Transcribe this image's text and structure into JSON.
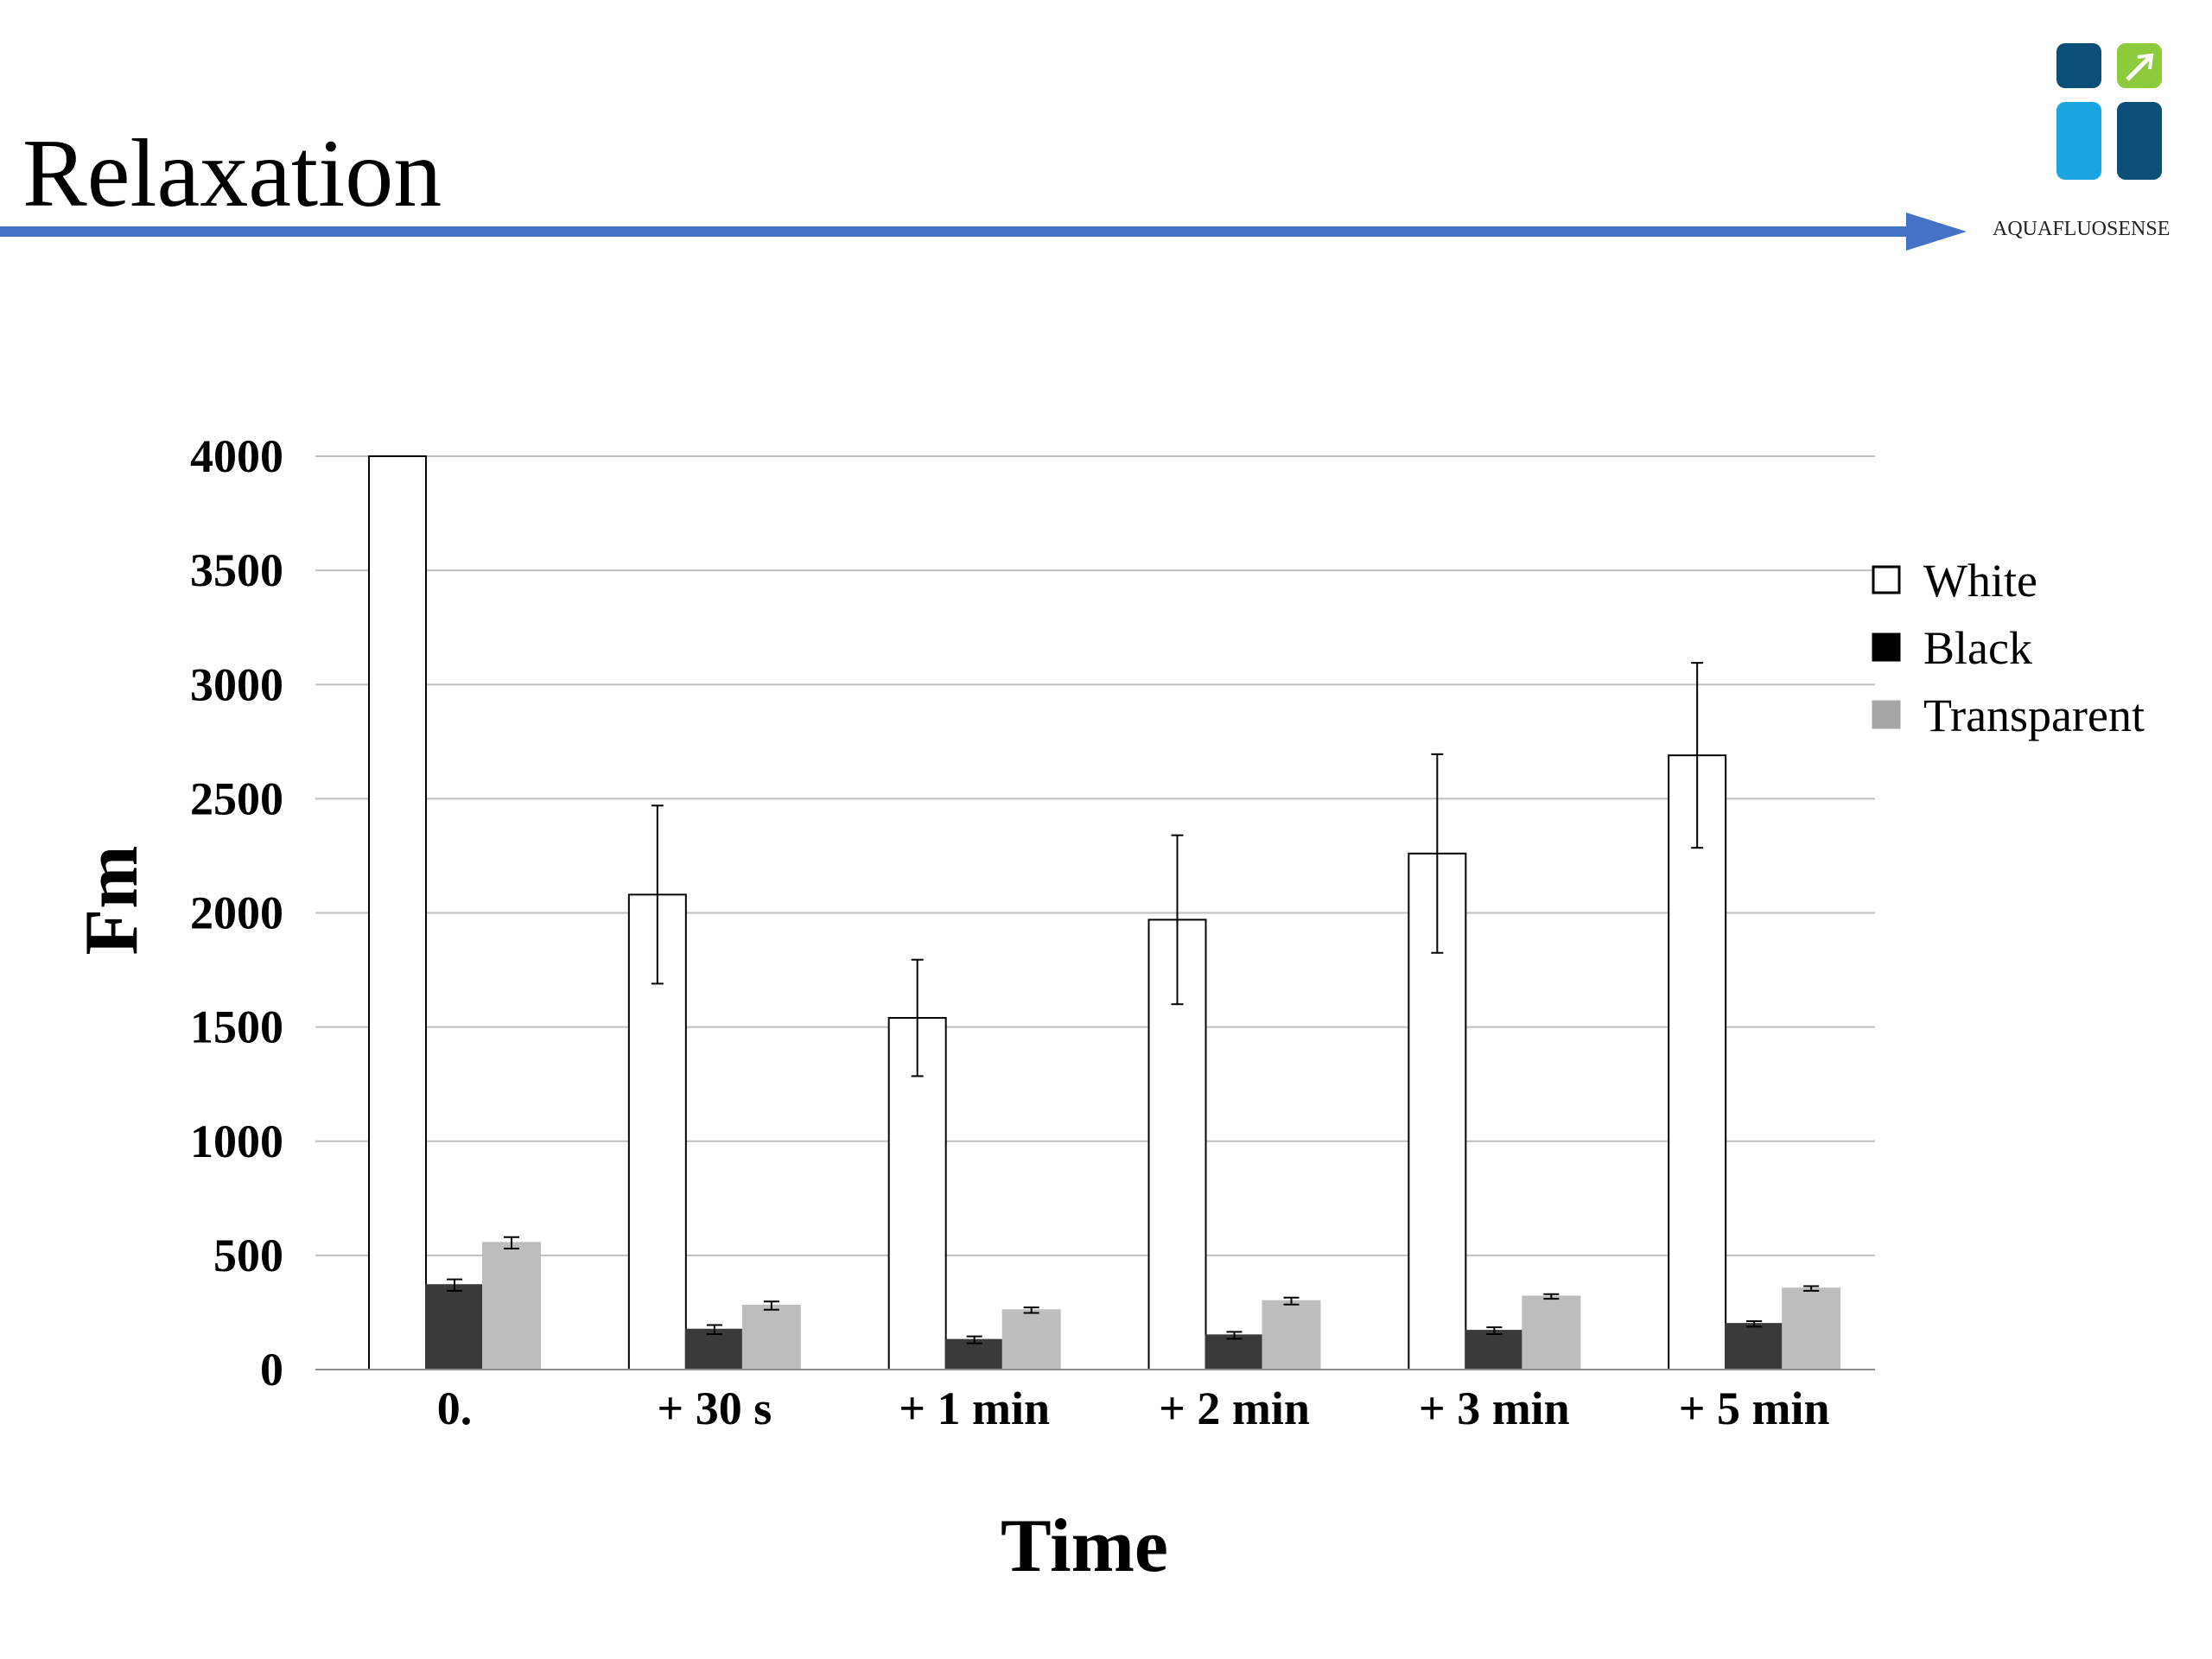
{
  "slide": {
    "title": "Relaxation",
    "logo_text": "AQUAFLUOSENSE"
  },
  "colors": {
    "arrow": "#4472c4",
    "logo_dark": "#0b4f79",
    "logo_light": "#1aa6e0",
    "logo_green": "#8ccb3c",
    "white_series": "#ffffff",
    "black_series": "#3a3a3a",
    "transparent_series": "#bdbdbd",
    "gridline": "#bfbfbf"
  },
  "icons": [
    "aquafluosense-logo-icon",
    "relaxation-arrow"
  ],
  "chart_data": {
    "type": "bar",
    "title": "",
    "xlabel": "Time",
    "ylabel": "Fm",
    "ylim": [
      0,
      4000
    ],
    "yticks": [
      0,
      500,
      1000,
      1500,
      2000,
      2500,
      3000,
      3500,
      4000
    ],
    "grid": true,
    "legend_position": "right",
    "categories": [
      "0.",
      "+ 30 s",
      "+ 1 min",
      "+ 2 min",
      "+ 3 min",
      "+ 5 min"
    ],
    "series": [
      {
        "name": "White",
        "values": [
          4000,
          2080,
          1540,
          1970,
          2260,
          2690
        ],
        "errors": [
          0,
          390,
          255,
          370,
          435,
          405
        ]
      },
      {
        "name": "Black",
        "values": [
          370,
          175,
          130,
          150,
          170,
          200
        ],
        "errors": [
          25,
          20,
          15,
          15,
          15,
          12
        ]
      },
      {
        "name": "Transparent",
        "values": [
          555,
          280,
          260,
          300,
          320,
          355
        ],
        "errors": [
          25,
          18,
          12,
          15,
          10,
          10
        ]
      }
    ]
  }
}
